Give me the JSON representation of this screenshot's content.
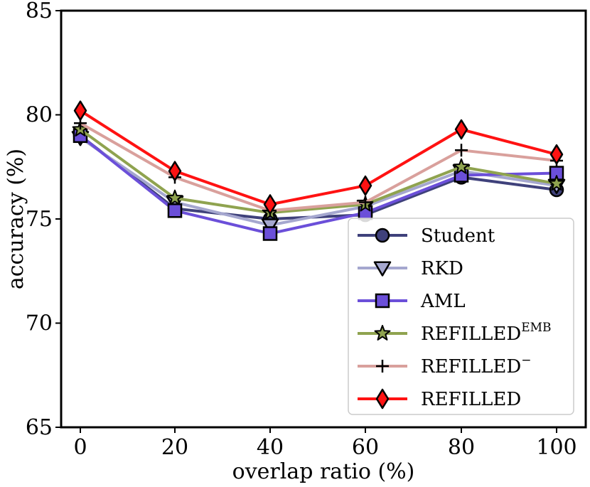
{
  "chart_data": {
    "type": "line",
    "xlabel": "overlap ratio (%)",
    "ylabel": "accuracy (%)",
    "x": [
      0,
      20,
      40,
      60,
      80,
      100
    ],
    "x_ticks": [
      "0",
      "20",
      "40",
      "60",
      "80",
      "100"
    ],
    "ylim": [
      65,
      85
    ],
    "y_ticks": [
      "65",
      "70",
      "75",
      "80",
      "85"
    ],
    "legend_position": "bottom-right",
    "series": [
      {
        "name": "Student",
        "label_main": "Student",
        "label_sup": "",
        "color": "#3f417b",
        "marker": "circle",
        "values": [
          79.0,
          75.5,
          75.0,
          75.2,
          77.0,
          76.4
        ]
      },
      {
        "name": "RKD",
        "label_main": "RKD",
        "label_sup": "",
        "color": "#a5a7cf",
        "marker": "triangle-down",
        "values": [
          78.9,
          75.8,
          74.7,
          75.6,
          77.3,
          76.6
        ]
      },
      {
        "name": "AML",
        "label_main": "AML",
        "label_sup": "",
        "color": "#6b4fd9",
        "marker": "square",
        "values": [
          79.0,
          75.4,
          74.3,
          75.3,
          77.1,
          77.2
        ]
      },
      {
        "name": "REFILLEDEMB",
        "label_main": "REFILLED",
        "label_sup": "EMB",
        "color": "#8fa34f",
        "marker": "star",
        "values": [
          79.3,
          76.0,
          75.3,
          75.7,
          77.5,
          76.7
        ]
      },
      {
        "name": "REFILLED−",
        "label_main": "REFILLED",
        "label_sup": "−",
        "color": "#d9a09c",
        "marker": "plus",
        "values": [
          79.6,
          77.0,
          75.4,
          75.8,
          78.3,
          77.8
        ]
      },
      {
        "name": "REFILLED",
        "label_main": "REFILLED",
        "label_sup": "",
        "color": "#ff1212",
        "marker": "diamond",
        "values": [
          80.2,
          77.3,
          75.7,
          76.6,
          79.3,
          78.1
        ]
      }
    ]
  }
}
